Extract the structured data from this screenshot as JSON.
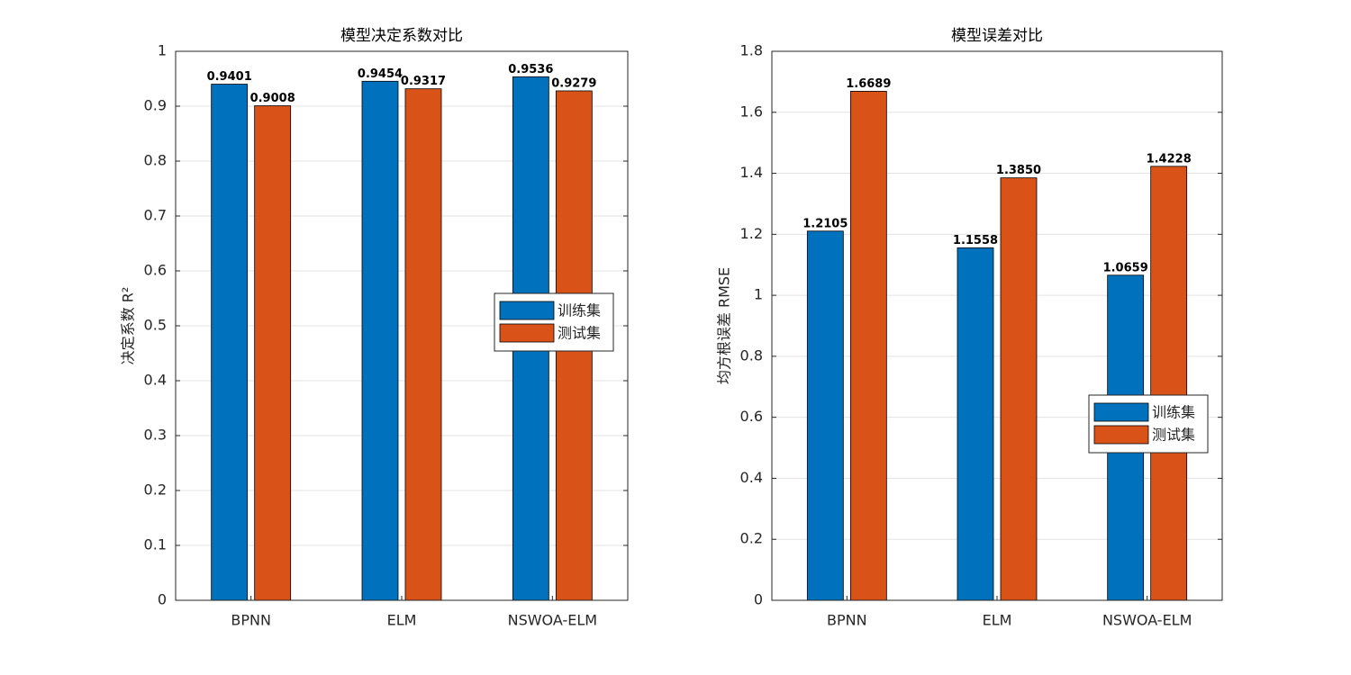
{
  "chart_data": [
    {
      "type": "bar",
      "title": "模型决定系数对比",
      "y_label": "决定系数 R²",
      "categories": [
        "BPNN",
        "ELM",
        "NSWOA-ELM"
      ],
      "series": [
        {
          "name": "训练集",
          "color": "#0072BD",
          "values": [
            0.9401,
            0.9454,
            0.9536
          ],
          "value_labels": [
            "0.9401",
            "0.9454",
            "0.9536"
          ]
        },
        {
          "name": "测试集",
          "color": "#D95319",
          "values": [
            0.9008,
            0.9317,
            0.9279
          ],
          "value_labels": [
            "0.9008",
            "0.9317",
            "0.9279"
          ]
        }
      ],
      "ylim": [
        0,
        1
      ],
      "yticks": [
        0,
        0.1,
        0.2,
        0.3,
        0.4,
        0.5,
        0.6,
        0.7,
        0.8,
        0.9,
        1
      ],
      "grid": true,
      "legend": "east"
    },
    {
      "type": "bar",
      "title": "模型误差对比",
      "y_label": "均方根误差 RMSE",
      "categories": [
        "BPNN",
        "ELM",
        "NSWOA-ELM"
      ],
      "series": [
        {
          "name": "训练集",
          "color": "#0072BD",
          "values": [
            1.2105,
            1.1558,
            1.0659
          ],
          "value_labels": [
            "1.2105",
            "1.1558",
            "1.0659"
          ]
        },
        {
          "name": "测试集",
          "color": "#D95319",
          "values": [
            1.6689,
            1.385,
            1.4228
          ],
          "value_labels": [
            "1.6689",
            "1.3850",
            "1.4228"
          ]
        }
      ],
      "ylim": [
        0,
        1.8
      ],
      "yticks": [
        0,
        0.2,
        0.4,
        0.6,
        0.8,
        1,
        1.2,
        1.4,
        1.6,
        1.8
      ],
      "grid": true,
      "legend": "southeast"
    }
  ]
}
